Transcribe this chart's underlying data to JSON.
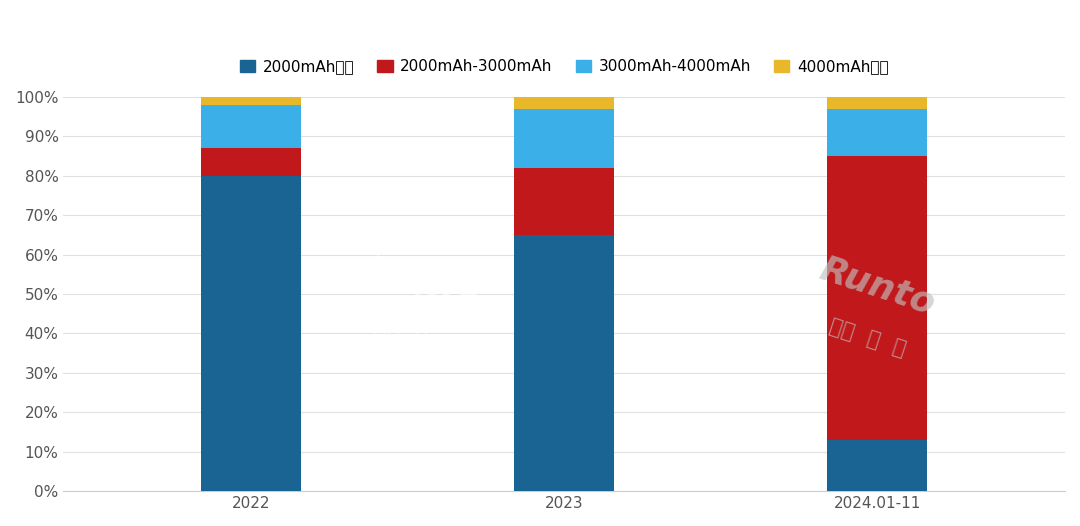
{
  "categories": [
    "2022",
    "2023",
    "2024.01-11"
  ],
  "series": {
    "2000mAh以下": [
      80,
      65,
      13
    ],
    "2000mAh-3000mAh": [
      7,
      17,
      72
    ],
    "3000mAh-4000mAh": [
      11,
      15,
      12
    ],
    "4000mAh以上": [
      2,
      3,
      3
    ]
  },
  "colors": {
    "2000mAh以下": "#1a6494",
    "2000mAh-3000mAh": "#c0181b",
    "3000mAh-4000mAh": "#3aafe8",
    "4000mAh以上": "#e8b82a"
  },
  "legend_order": [
    "2000mAh以下",
    "2000mAh-3000mAh",
    "3000mAh-4000mAh",
    "4000mAh以上"
  ],
  "bar_width": 0.32,
  "ylim": [
    0,
    100
  ],
  "yticks": [
    0,
    10,
    20,
    30,
    40,
    50,
    60,
    70,
    80,
    90,
    100
  ],
  "ytick_labels": [
    "0%",
    "10%",
    "20%",
    "30%",
    "40%",
    "50%",
    "60%",
    "70%",
    "80%",
    "90%",
    "100%"
  ],
  "background_color": "#ffffff",
  "grid_color": "#e0e0e0",
  "font_size_legend": 11,
  "font_size_ticks": 11
}
